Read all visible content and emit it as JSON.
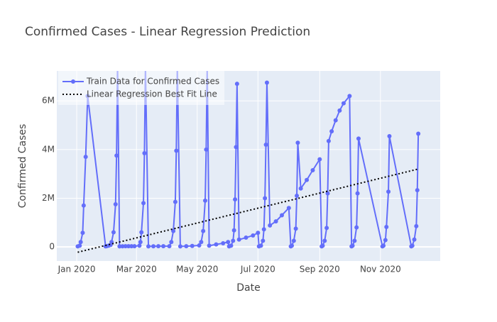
{
  "chart_data": {
    "type": "line",
    "title": "Confirmed Cases - Linear Regression Prediction",
    "x_label": "Date",
    "y_label": "Confirmed Cases",
    "xlim": [
      "2019-12-12",
      "2020-12-31"
    ],
    "xticks": [
      {
        "value": "2020-01-01",
        "label": "Jan 2020"
      },
      {
        "value": "2020-03-01",
        "label": "Mar 2020"
      },
      {
        "value": "2020-05-01",
        "label": "May 2020"
      },
      {
        "value": "2020-07-01",
        "label": "Jul 2020"
      },
      {
        "value": "2020-09-01",
        "label": "Sep 2020"
      },
      {
        "value": "2020-11-01",
        "label": "Nov 2020"
      }
    ],
    "ylim": [
      -580000,
      7230000
    ],
    "yticks": [
      0,
      {
        "value": 2000000,
        "label": "2M"
      },
      {
        "value": 4000000,
        "label": "4M"
      },
      {
        "value": 6000000,
        "label": "6M"
      }
    ],
    "grid": true,
    "legend": "top-left",
    "series": [
      {
        "name": "Train Data for Confirmed Cases",
        "color": "#636efa",
        "style": "lines+markers",
        "x": [
          "2020-01-02",
          "2020-01-04",
          "2020-01-05",
          "2020-01-07",
          "2020-01-08",
          "2020-01-10",
          "2020-01-12",
          "2020-01-30",
          "2020-01-31",
          "2020-02-02",
          "2020-02-04",
          "2020-02-05",
          "2020-02-07",
          "2020-02-09",
          "2020-02-10",
          "2020-02-11",
          "2020-02-13",
          "2020-02-16",
          "2020-02-19",
          "2020-02-22",
          "2020-02-25",
          "2020-02-28",
          "2020-03-04",
          "2020-03-05",
          "2020-03-06",
          "2020-03-08",
          "2020-03-09",
          "2020-03-10",
          "2020-03-13",
          "2020-03-18",
          "2020-03-23",
          "2020-03-28",
          "2020-04-03",
          "2020-04-05",
          "2020-04-07",
          "2020-04-09",
          "2020-04-10",
          "2020-04-11",
          "2020-04-14",
          "2020-04-20",
          "2020-04-26",
          "2020-05-03",
          "2020-05-05",
          "2020-05-07",
          "2020-05-09",
          "2020-05-10",
          "2020-05-11",
          "2020-05-13",
          "2020-05-20",
          "2020-05-27",
          "2020-06-01",
          "2020-06-02",
          "2020-06-04",
          "2020-06-06",
          "2020-06-07",
          "2020-06-08",
          "2020-06-09",
          "2020-06-10",
          "2020-06-12",
          "2020-06-19",
          "2020-06-26",
          "2020-07-01",
          "2020-07-02",
          "2020-07-04",
          "2020-07-06",
          "2020-07-07",
          "2020-07-08",
          "2020-07-09",
          "2020-07-10",
          "2020-07-13",
          "2020-07-19",
          "2020-07-25",
          "2020-08-01",
          "2020-08-03",
          "2020-08-04",
          "2020-08-06",
          "2020-08-08",
          "2020-08-09",
          "2020-08-10",
          "2020-08-13",
          "2020-08-19",
          "2020-08-25",
          "2020-09-01",
          "2020-09-03",
          "2020-09-04",
          "2020-09-06",
          "2020-09-08",
          "2020-09-09",
          "2020-09-10",
          "2020-09-13",
          "2020-09-17",
          "2020-09-21",
          "2020-09-25",
          "2020-10-01",
          "2020-10-03",
          "2020-10-04",
          "2020-10-06",
          "2020-10-08",
          "2020-10-09",
          "2020-10-10",
          "2020-11-03",
          "2020-11-04",
          "2020-11-06",
          "2020-11-07",
          "2020-11-09",
          "2020-11-10",
          "2020-12-02",
          "2020-12-03",
          "2020-12-05",
          "2020-12-07",
          "2020-12-08",
          "2020-12-09"
        ],
        "values": [
          20000,
          50000,
          200000,
          580000,
          1700000,
          3700000,
          6200000,
          20000,
          30000,
          50000,
          80000,
          200000,
          600000,
          1750000,
          3750000,
          7500000,
          20000,
          25000,
          30000,
          30000,
          30000,
          30000,
          50000,
          200000,
          600000,
          1800000,
          3850000,
          7500000,
          20000,
          25000,
          30000,
          30000,
          30000,
          200000,
          650000,
          1850000,
          3950000,
          7500000,
          20000,
          30000,
          40000,
          60000,
          200000,
          650000,
          1900000,
          4000000,
          7500000,
          50000,
          100000,
          150000,
          200000,
          20000,
          50000,
          250000,
          680000,
          1950000,
          4100000,
          6700000,
          300000,
          380000,
          470000,
          580000,
          20000,
          50000,
          250000,
          720000,
          2000000,
          4200000,
          6750000,
          880000,
          1050000,
          1300000,
          1600000,
          20000,
          50000,
          250000,
          750000,
          2100000,
          4280000,
          2400000,
          2750000,
          3150000,
          3600000,
          20000,
          50000,
          250000,
          780000,
          2200000,
          4350000,
          4750000,
          5200000,
          5600000,
          5900000,
          6200000,
          20000,
          50000,
          250000,
          800000,
          2200000,
          4450000,
          20000,
          50000,
          280000,
          820000,
          2270000,
          4550000,
          20000,
          50000,
          300000,
          850000,
          2330000,
          4650000
        ]
      },
      {
        "name": "Linear Regression Best Fit Line",
        "color": "#000000",
        "style": "dotted",
        "x": [
          "2020-01-02",
          "2020-12-09"
        ],
        "values": [
          -220000,
          3200000
        ]
      }
    ]
  }
}
